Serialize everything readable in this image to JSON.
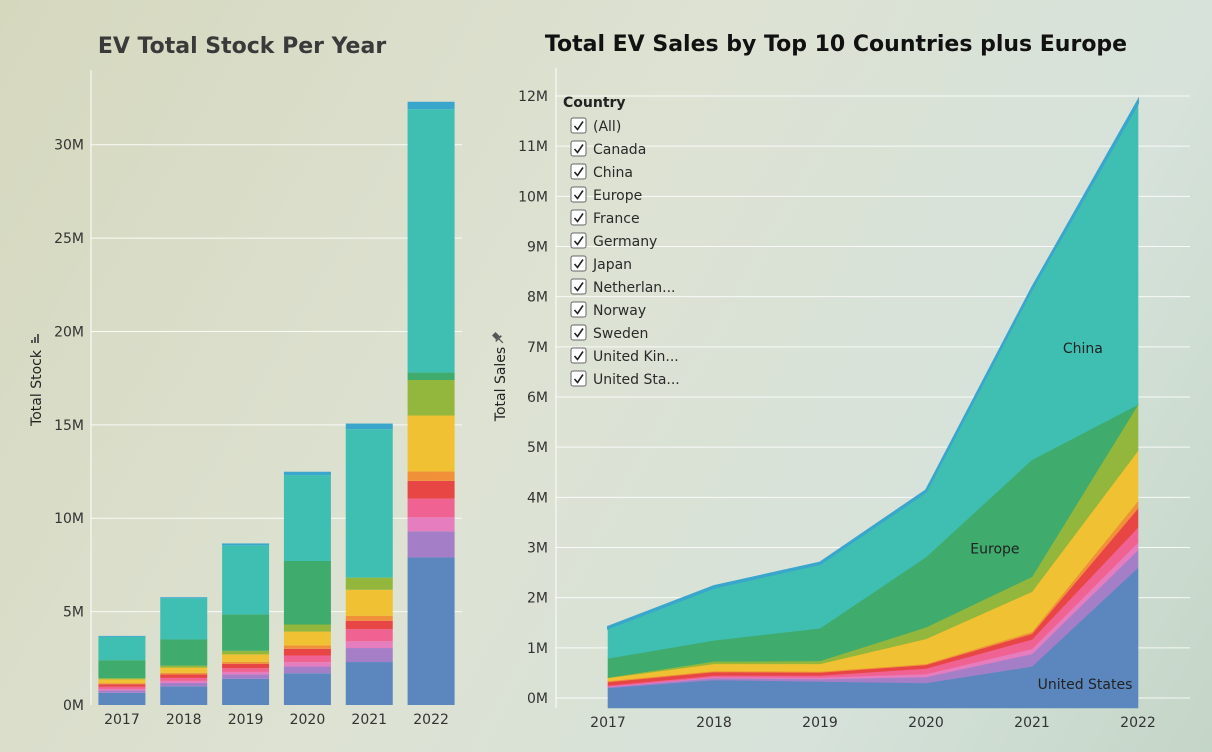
{
  "colors": {
    "United States": "#5b87be",
    "purple": "#a57ec8",
    "pink": "#e57dbf",
    "rose": "#f06292",
    "red": "#e84545",
    "orange": "#f0913a",
    "yellow": "#f0c133",
    "olive": "#93b63c",
    "Europe": "#3fab6c",
    "China": "#3fbfb2",
    "top": "#3aa6cc"
  },
  "chart_data": [
    {
      "type": "bar",
      "title": "EV Total Stock Per Year",
      "ylabel": "Total Stock",
      "xlabel": "",
      "categories": [
        "2017",
        "2018",
        "2019",
        "2020",
        "2021",
        "2022"
      ],
      "ylim": [
        0,
        34000000
      ],
      "yticks": [
        {
          "value": 0,
          "label": "0M"
        },
        {
          "value": 5000000,
          "label": "5M"
        },
        {
          "value": 10000000,
          "label": "10M"
        },
        {
          "value": 15000000,
          "label": "15M"
        },
        {
          "value": 20000000,
          "label": "20M"
        },
        {
          "value": 25000000,
          "label": "25M"
        },
        {
          "value": 30000000,
          "label": "30M"
        }
      ],
      "stacked": true,
      "series": [
        {
          "color_key": "United States",
          "values": [
            650000,
            1000000,
            1400000,
            1700000,
            2300000,
            7900000
          ]
        },
        {
          "color_key": "purple",
          "values": [
            130000,
            180000,
            230000,
            360000,
            750000,
            1400000
          ]
        },
        {
          "color_key": "pink",
          "values": [
            80000,
            110000,
            140000,
            230000,
            360000,
            750000
          ]
        },
        {
          "color_key": "rose",
          "values": [
            120000,
            160000,
            200000,
            360000,
            650000,
            1000000
          ]
        },
        {
          "color_key": "red",
          "values": [
            130000,
            180000,
            230000,
            360000,
            450000,
            950000
          ]
        },
        {
          "color_key": "orange",
          "values": [
            60000,
            90000,
            110000,
            180000,
            260000,
            500000
          ]
        },
        {
          "color_key": "yellow",
          "values": [
            200000,
            280000,
            400000,
            740000,
            1400000,
            3000000
          ]
        },
        {
          "color_key": "olive",
          "values": [
            70000,
            110000,
            190000,
            380000,
            650000,
            1900000
          ]
        },
        {
          "color_key": "Europe",
          "values": [
            960000,
            1400000,
            1950000,
            3400000,
            0,
            400000
          ]
        },
        {
          "color_key": "China",
          "values": [
            1250000,
            2200000,
            3700000,
            4600000,
            7950000,
            14100000
          ]
        },
        {
          "color_key": "top",
          "values": [
            50000,
            60000,
            100000,
            180000,
            300000,
            400000
          ]
        }
      ]
    },
    {
      "type": "area",
      "title": "Total EV Sales by Top 10 Countries plus Europe",
      "ylabel": "Total Sales",
      "xlabel": "",
      "x": [
        "2017",
        "2018",
        "2019",
        "2020",
        "2021",
        "2022"
      ],
      "ylim": [
        -200000,
        12000000
      ],
      "yticks": [
        {
          "value": 0,
          "label": "0M"
        },
        {
          "value": 1000000,
          "label": "1M"
        },
        {
          "value": 2000000,
          "label": "2M"
        },
        {
          "value": 3000000,
          "label": "3M"
        },
        {
          "value": 4000000,
          "label": "4M"
        },
        {
          "value": 5000000,
          "label": "5M"
        },
        {
          "value": 6000000,
          "label": "6M"
        },
        {
          "value": 7000000,
          "label": "7M"
        },
        {
          "value": 8000000,
          "label": "8M"
        },
        {
          "value": 9000000,
          "label": "9M"
        },
        {
          "value": 10000000,
          "label": "10M"
        },
        {
          "value": 11000000,
          "label": "11M"
        },
        {
          "value": 12000000,
          "label": "12M"
        }
      ],
      "stacked": true,
      "series": [
        {
          "color_key": "United States",
          "values": [
            200000,
            360000,
            330000,
            300000,
            630000,
            2600000
          ]
        },
        {
          "color_key": "purple",
          "values": [
            20000,
            40000,
            50000,
            120000,
            250000,
            350000
          ]
        },
        {
          "color_key": "pink",
          "values": [
            10000,
            20000,
            30000,
            60000,
            100000,
            150000
          ]
        },
        {
          "color_key": "rose",
          "values": [
            20000,
            30000,
            40000,
            110000,
            190000,
            300000
          ]
        },
        {
          "color_key": "red",
          "values": [
            70000,
            70000,
            60000,
            70000,
            110000,
            380000
          ]
        },
        {
          "color_key": "orange",
          "values": [
            20000,
            20000,
            20000,
            20000,
            40000,
            150000
          ]
        },
        {
          "color_key": "yellow",
          "values": [
            60000,
            140000,
            150000,
            500000,
            800000,
            1000000
          ]
        },
        {
          "color_key": "olive",
          "values": [
            10000,
            50000,
            60000,
            230000,
            300000,
            920000
          ]
        },
        {
          "color_key": "Europe",
          "values": [
            380000,
            420000,
            650000,
            1400000,
            2330000,
            0
          ]
        },
        {
          "color_key": "China",
          "values": [
            600000,
            1050000,
            1280000,
            1300000,
            3400000,
            6000000
          ]
        },
        {
          "color_key": "top",
          "values": [
            30000,
            30000,
            30000,
            30000,
            30000,
            60000
          ]
        }
      ],
      "annotations": [
        {
          "text": "China",
          "x": "2021",
          "y": 6800000,
          "dx": 0.48
        },
        {
          "text": "Europe",
          "x": "2020",
          "y": 2800000,
          "dx": 0.65
        },
        {
          "text": "United States",
          "x": "2021",
          "y": 100000,
          "dx": 0.5
        }
      ]
    }
  ],
  "legend": {
    "title": "Country",
    "items": [
      {
        "label": "(All)",
        "checked": true
      },
      {
        "label": "Canada",
        "checked": true
      },
      {
        "label": "China",
        "checked": true
      },
      {
        "label": "Europe",
        "checked": true
      },
      {
        "label": "France",
        "checked": true
      },
      {
        "label": "Germany",
        "checked": true
      },
      {
        "label": "Japan",
        "checked": true
      },
      {
        "label": "Netherlan...",
        "checked": true
      },
      {
        "label": "Norway",
        "checked": true
      },
      {
        "label": "Sweden",
        "checked": true
      },
      {
        "label": "United Kin...",
        "checked": true
      },
      {
        "label": "United Sta...",
        "checked": true
      }
    ]
  }
}
